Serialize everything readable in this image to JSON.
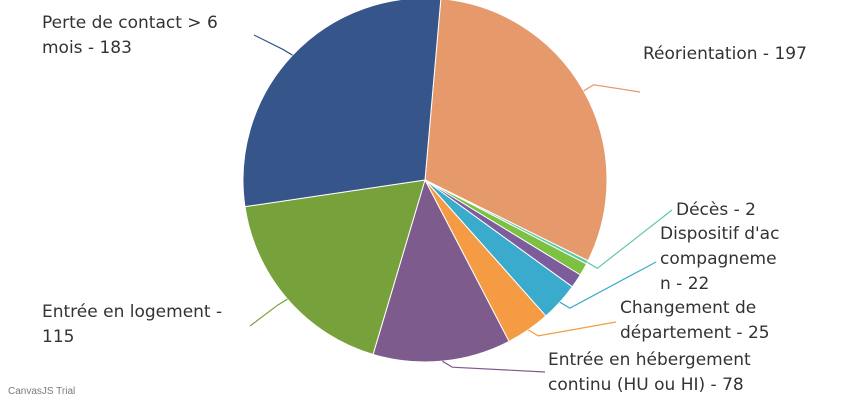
{
  "chart_data": {
    "type": "pie",
    "title": "",
    "start_angle_deg": -85,
    "slices": [
      {
        "label": "Réorientation",
        "value": 197,
        "color": "#E69A6C",
        "text": "Réorientation  - 197"
      },
      {
        "label": "Décès",
        "value": 2,
        "color": "#62C7A6",
        "text": "Décès - 2"
      },
      {
        "label": "Dispositif d'accompagnemen",
        "value": 7,
        "color": "#7DC143",
        "text": ""
      },
      {
        "label": "Dispositif d'accompagnemen",
        "value": 8,
        "color": "#7D5C9C",
        "text": ""
      },
      {
        "label": "Dispositif d'accompagnemen",
        "value": 22,
        "color": "#3AABCC",
        "text": "Dispositif d'accompagnemen - 22"
      },
      {
        "label": "Changement de département",
        "value": 25,
        "color": "#F59B43",
        "text": "Changement de département - 25"
      },
      {
        "label": "Entrée en hébergement continu (HU ou HI)",
        "value": 78,
        "color": "#7D5B8C",
        "text": "Entrée en hébergement continu (HU ou HI) - 78"
      },
      {
        "label": "Entrée en logement",
        "value": 115,
        "color": "#77A23B",
        "text": "Entrée en logement - 115"
      },
      {
        "label": "Perte de contact > 6 mois",
        "value": 183,
        "color": "#36558A",
        "text": "Perte de contact > 6 mois - 183"
      }
    ]
  },
  "credit": "CanvasJS Trial"
}
